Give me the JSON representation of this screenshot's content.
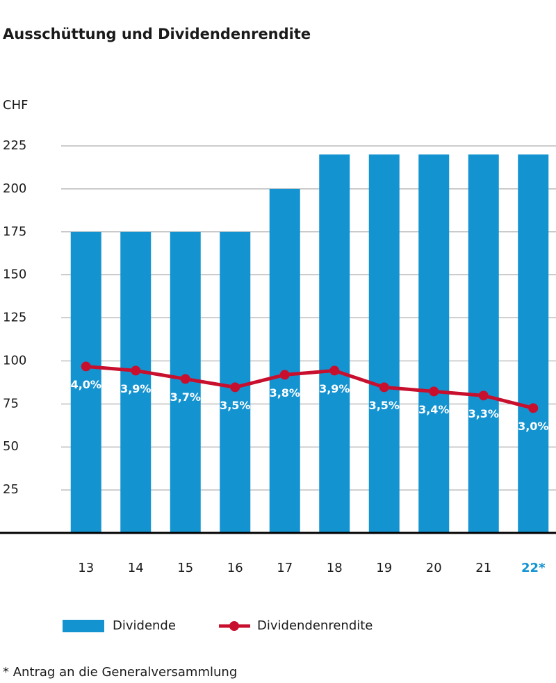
{
  "chart_data": {
    "type": "bar-line",
    "title": "Ausschüttung und Dividendenrendite",
    "y_label": "CHF",
    "footnote": "* Antrag an die Generalversammlung",
    "categories": [
      "13",
      "14",
      "15",
      "16",
      "17",
      "18",
      "19",
      "20",
      "21",
      "22*"
    ],
    "category_label_colors": [
      "#1a1a1a",
      "#1a1a1a",
      "#1a1a1a",
      "#1a1a1a",
      "#1a1a1a",
      "#1a1a1a",
      "#1a1a1a",
      "#1a1a1a",
      "#1a1a1a",
      "#1493d1"
    ],
    "series": [
      {
        "name": "Dividende",
        "type": "bar",
        "color": "#1493d1",
        "values": [
          175,
          175,
          175,
          175,
          200,
          220,
          220,
          220,
          220,
          220
        ]
      },
      {
        "name": "Dividendenrendite",
        "type": "line",
        "axis": "y2",
        "color": "#c8102e",
        "values": [
          4.0,
          3.9,
          3.7,
          3.5,
          3.8,
          3.9,
          3.5,
          3.4,
          3.3,
          3.0
        ],
        "value_labels": [
          "4,0%",
          "3,9%",
          "3,7%",
          "3,5%",
          "3,8%",
          "3,9%",
          "3,5%",
          "3,4%",
          "3,3%",
          "3,0%"
        ]
      }
    ],
    "ylim": [
      0,
      225
    ],
    "yticks": [
      25,
      50,
      75,
      100,
      125,
      150,
      175,
      200,
      225
    ],
    "y2lim": [
      0,
      9.3
    ],
    "grid": true
  }
}
